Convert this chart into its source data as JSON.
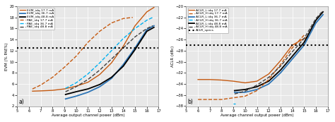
{
  "left": {
    "xlabel": "Average output channel power (dBm)",
    "ylabel": "EVM (% PAE%)",
    "xlim": [
      5,
      17
    ],
    "ylim": [
      2,
      20
    ],
    "yticks": [
      2,
      4,
      6,
      8,
      10,
      12,
      14,
      16,
      18,
      20
    ],
    "xticks": [
      5,
      6,
      7,
      8,
      9,
      10,
      11,
      12,
      13,
      14,
      15,
      16,
      17
    ],
    "hline": 12.5,
    "label_pos": "a)",
    "evm_17": {
      "x": [
        6.3,
        7.0,
        8.0,
        9.0,
        10.0,
        11.0,
        12.0,
        13.0,
        14.0,
        15.0,
        16.0,
        16.6
      ],
      "y": [
        4.7,
        4.75,
        4.85,
        5.1,
        5.6,
        6.3,
        7.7,
        9.8,
        12.8,
        16.5,
        19.0,
        19.8
      ]
    },
    "evm_36": {
      "x": [
        9.1,
        10.0,
        11.0,
        12.0,
        13.0,
        14.0,
        15.0,
        16.0,
        16.6
      ],
      "y": [
        3.3,
        3.8,
        4.5,
        5.5,
        7.0,
        9.5,
        12.5,
        15.8,
        16.5
      ]
    },
    "evm_48": {
      "x": [
        9.1,
        10.0,
        11.0,
        12.0,
        13.0,
        14.0,
        15.0,
        16.0,
        16.6
      ],
      "y": [
        4.1,
        4.6,
        5.1,
        5.9,
        7.2,
        9.2,
        12.2,
        15.5,
        16.2
      ]
    },
    "pae_17": {
      "x": [
        6.3,
        7.0,
        8.0,
        9.0,
        10.0,
        11.0,
        12.0,
        13.0,
        14.0,
        14.8
      ],
      "y": [
        5.1,
        5.8,
        7.2,
        9.0,
        11.0,
        13.5,
        15.5,
        17.0,
        17.8,
        18.0
      ]
    },
    "pae_36": {
      "x": [
        9.1,
        10.0,
        11.0,
        12.0,
        13.0,
        14.0,
        15.0,
        16.0,
        16.5
      ],
      "y": [
        5.2,
        6.2,
        7.8,
        9.8,
        12.0,
        14.2,
        16.0,
        17.5,
        18.0
      ]
    },
    "pae_48": {
      "x": [
        9.1,
        10.0,
        11.0,
        12.0,
        13.0,
        14.0,
        15.0,
        16.0,
        16.5
      ],
      "y": [
        4.6,
        5.5,
        6.8,
        8.5,
        10.5,
        12.5,
        14.5,
        16.0,
        16.5
      ]
    },
    "legend_labels": [
      "EVM_idq 17.7 mA",
      "EVM_idq 36.7 mA",
      "EVM_idq 48.8 mA",
      "PAE_idq 17.7 mA",
      "PAE_idq 36.7 mA",
      "PAE_idq 48.8 mA"
    ]
  },
  "right": {
    "xlabel": "Average channel output power (dBm)",
    "ylabel": "ACLR (dBc)",
    "xlim": [
      5,
      17
    ],
    "ylim": [
      -38,
      -20
    ],
    "yticks": [
      -38,
      -36,
      -34,
      -32,
      -30,
      -28,
      -26,
      -24,
      -22,
      -20
    ],
    "xticks": [
      5,
      6,
      7,
      8,
      9,
      10,
      11,
      12,
      13,
      14,
      15,
      16,
      17
    ],
    "hline": -27.0,
    "label_pos": "b)",
    "aclr_l_17": {
      "x": [
        6.0,
        7.0,
        8.0,
        9.0,
        10.0,
        11.0,
        12.0,
        13.0,
        14.0,
        15.0,
        15.3
      ],
      "y": [
        -33.2,
        -33.2,
        -33.3,
        -33.5,
        -33.8,
        -33.5,
        -32.2,
        -29.8,
        -27.0,
        -25.8,
        -25.5
      ]
    },
    "aclr_h_17": {
      "x": [
        6.0,
        7.0,
        8.0,
        9.0,
        10.0,
        11.0,
        12.0,
        13.0,
        14.0,
        15.0
      ],
      "y": [
        -36.8,
        -36.8,
        -36.8,
        -36.5,
        -36.2,
        -35.2,
        -33.2,
        -30.5,
        -27.5,
        -25.2
      ]
    },
    "aclr_l_36": {
      "x": [
        9.1,
        10.0,
        11.0,
        12.0,
        13.0,
        14.0,
        15.0,
        16.0,
        16.6
      ],
      "y": [
        -35.5,
        -35.5,
        -35.0,
        -34.0,
        -32.0,
        -29.5,
        -27.0,
        -23.0,
        -21.5
      ]
    },
    "aclr_h_36": {
      "x": [
        9.0,
        9.15
      ],
      "y": [
        -37.5,
        -37.5
      ]
    },
    "aclr_l_48": {
      "x": [
        9.1,
        10.0,
        11.0,
        12.0,
        13.0,
        14.0,
        15.0,
        16.0,
        16.6
      ],
      "y": [
        -35.2,
        -35.0,
        -34.5,
        -33.5,
        -31.5,
        -29.0,
        -26.5,
        -22.5,
        -21.0
      ]
    },
    "aclr_h_48": {
      "x": [
        9.1,
        10.0,
        11.0,
        12.0,
        13.0,
        14.0,
        15.0,
        16.0,
        16.6
      ],
      "y": [
        -35.8,
        -35.3,
        -34.2,
        -32.8,
        -30.8,
        -28.2,
        -25.8,
        -22.2,
        -20.8
      ]
    },
    "legend_labels": [
      "ACLR_L idq 17.7 mA",
      "ACLR_H idq 17.7 mA",
      "ACLR_L idq 36.7 mA",
      "ACLR_H idq 36.7 mA",
      "ACLR_L idq 48.8 mA",
      "ACLR_H idq 48.8 mA",
      "ACLR_specs"
    ]
  },
  "fig_bg": "#ffffff",
  "plot_bg": "#e8e8e8",
  "grid_color": "#ffffff"
}
